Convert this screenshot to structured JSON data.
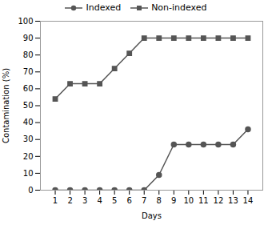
{
  "chart_data": {
    "type": "line",
    "x": [
      1,
      2,
      3,
      4,
      5,
      6,
      7,
      8,
      9,
      10,
      11,
      12,
      13,
      14
    ],
    "xlabel": "Days",
    "ylabel": "Contamination (%)",
    "xlim": [
      0,
      15
    ],
    "xticks": [
      1,
      2,
      3,
      4,
      5,
      6,
      7,
      8,
      9,
      10,
      11,
      12,
      13,
      14
    ],
    "ylim": [
      0,
      100
    ],
    "yticks": [
      0,
      10,
      20,
      30,
      40,
      50,
      60,
      70,
      80,
      90,
      100
    ],
    "legend": "upper center",
    "series": [
      {
        "name": "Indexed",
        "color": "#555555",
        "marker": "circle",
        "values": [
          0,
          0,
          0,
          0,
          0,
          0,
          0,
          9,
          27,
          27,
          27,
          27,
          27,
          36
        ]
      },
      {
        "name": "Non-indexed",
        "color": "#555555",
        "marker": "square",
        "values": [
          54,
          63,
          63,
          63,
          72,
          81,
          90,
          90,
          90,
          90,
          90,
          90,
          90,
          90
        ]
      }
    ]
  }
}
